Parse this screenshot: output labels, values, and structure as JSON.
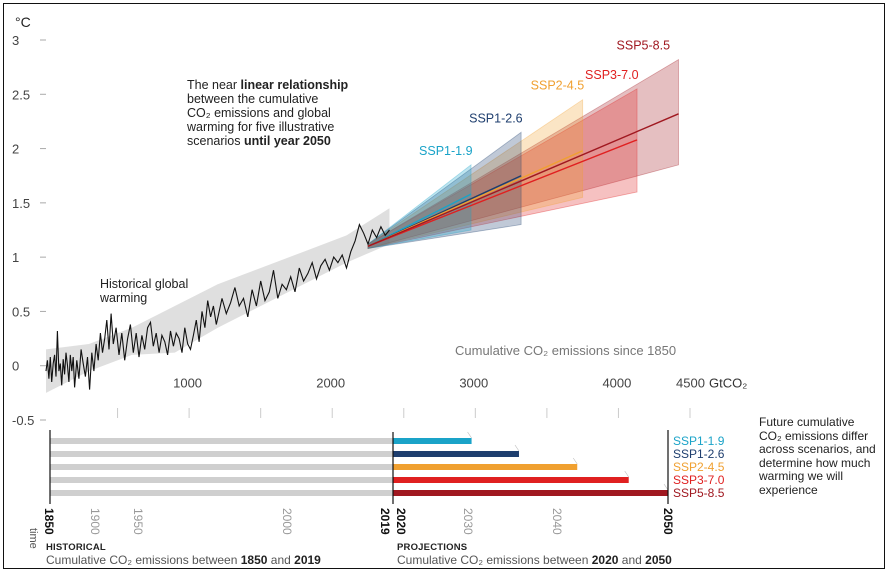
{
  "chart_data": [
    {
      "type": "line",
      "unit_label": "°C",
      "x_unit": "GtCO₂",
      "x_axis_caption": "Cumulative CO₂ emissions since 1850",
      "xlim": [
        0,
        4500
      ],
      "ylim": [
        -0.5,
        3
      ],
      "x_ticks": [
        1000,
        2000,
        3000,
        4000,
        4500
      ],
      "y_ticks": [
        -0.5,
        0,
        0.5,
        1,
        1.5,
        2,
        2.5,
        3
      ],
      "grid": false,
      "annotation_main": {
        "line1_pre": "The near ",
        "line1_bold": "linear relationship",
        "line2": "between the cumulative",
        "line3": "CO₂ emissions and global",
        "line4": "warming for five illustrative",
        "line5_pre": "scenarios ",
        "line5_bold": "until year 2050"
      },
      "annotation_historical": [
        "Historical global",
        "warming"
      ],
      "historical_series": {
        "x": [
          0,
          10,
          20,
          30,
          40,
          50,
          60,
          70,
          80,
          90,
          100,
          110,
          120,
          130,
          140,
          150,
          160,
          170,
          180,
          190,
          200,
          215,
          230,
          245,
          260,
          275,
          290,
          305,
          320,
          335,
          350,
          365,
          380,
          395,
          410,
          425,
          440,
          455,
          470,
          490,
          510,
          530,
          550,
          570,
          590,
          610,
          630,
          650,
          670,
          690,
          710,
          730,
          750,
          770,
          790,
          810,
          830,
          850,
          870,
          890,
          910,
          930,
          950,
          970,
          990,
          1010,
          1030,
          1050,
          1070,
          1090,
          1110,
          1130,
          1150,
          1170,
          1190,
          1210,
          1230,
          1260,
          1290,
          1320,
          1350,
          1380,
          1410,
          1440,
          1470,
          1500,
          1530,
          1560,
          1590,
          1620,
          1650,
          1680,
          1710,
          1740,
          1770,
          1800,
          1830,
          1860,
          1890,
          1920,
          1950,
          1980,
          2010,
          2040,
          2070,
          2100,
          2130,
          2160,
          2190,
          2220,
          2250,
          2280,
          2310,
          2340,
          2370,
          2400
        ],
        "y": [
          -0.05,
          0.05,
          -0.12,
          0.08,
          -0.15,
          0.02,
          0.1,
          -0.1,
          0.32,
          -0.05,
          0.02,
          -0.18,
          0.06,
          -0.08,
          0.12,
          0.0,
          -0.15,
          0.1,
          -0.05,
          0.08,
          -0.2,
          0.05,
          -0.12,
          0.15,
          0.02,
          -0.1,
          0.08,
          -0.22,
          0.12,
          -0.05,
          0.2,
          0.05,
          0.3,
          0.12,
          0.25,
          0.42,
          0.15,
          0.48,
          0.2,
          0.35,
          0.1,
          0.3,
          0.05,
          0.25,
          0.38,
          0.12,
          0.3,
          0.08,
          0.28,
          0.15,
          0.35,
          0.4,
          0.18,
          0.3,
          0.12,
          0.28,
          0.22,
          0.1,
          0.32,
          0.18,
          0.3,
          0.25,
          0.12,
          0.35,
          0.2,
          0.15,
          0.28,
          0.42,
          0.22,
          0.5,
          0.35,
          0.6,
          0.45,
          0.55,
          0.38,
          0.5,
          0.62,
          0.48,
          0.58,
          0.72,
          0.55,
          0.62,
          0.45,
          0.7,
          0.55,
          0.78,
          0.6,
          0.68,
          0.88,
          0.62,
          0.75,
          0.7,
          0.82,
          0.68,
          0.9,
          0.78,
          0.85,
          0.95,
          0.8,
          0.92,
          0.98,
          0.88,
          1.0,
          0.95,
          1.02,
          0.9,
          1.05,
          1.15,
          1.3,
          1.22,
          1.12,
          1.25,
          1.18,
          1.28,
          1.2,
          1.25
        ]
      },
      "historical_envelope": {
        "x": [
          0,
          300,
          600,
          900,
          1200,
          1500,
          1800,
          2100,
          2400
        ],
        "lower": [
          -0.25,
          -0.05,
          0.1,
          0.12,
          0.35,
          0.55,
          0.75,
          0.95,
          1.12
        ],
        "upper": [
          0.15,
          0.2,
          0.35,
          0.55,
          0.75,
          0.9,
          1.05,
          1.2,
          1.45
        ]
      },
      "series": [
        {
          "name": "SSP1-1.9",
          "color": "#1aa3c8",
          "x0": 2250,
          "x1": 2970,
          "y0": 1.1,
          "y1": 1.58,
          "lower1": 1.25,
          "upper1": 1.85
        },
        {
          "name": "SSP1-2.6",
          "color": "#1e3e6e",
          "x0": 2250,
          "x1": 3320,
          "y0": 1.1,
          "y1": 1.75,
          "lower1": 1.3,
          "upper1": 2.15
        },
        {
          "name": "SSP2-4.5",
          "color": "#f0a030",
          "x0": 2250,
          "x1": 3750,
          "y0": 1.1,
          "y1": 1.98,
          "lower1": 1.55,
          "upper1": 2.45
        },
        {
          "name": "SSP3-7.0",
          "color": "#e02020",
          "x0": 2250,
          "x1": 4130,
          "y0": 1.1,
          "y1": 2.08,
          "lower1": 1.6,
          "upper1": 2.55
        },
        {
          "name": "SSP5-8.5",
          "color": "#a01820",
          "x0": 2250,
          "x1": 4420,
          "y0": 1.1,
          "y1": 2.32,
          "lower1": 1.85,
          "upper1": 2.82
        }
      ]
    },
    {
      "type": "bar",
      "orientation": "horizontal",
      "time_label": "time",
      "years_axis": [
        {
          "year": "1850",
          "bold": true
        },
        {
          "year": "1900",
          "bold": false
        },
        {
          "year": "1950",
          "bold": false
        },
        {
          "year": "2000",
          "bold": false
        },
        {
          "year": "2019",
          "bold": true
        },
        {
          "year": "2020",
          "bold": true
        },
        {
          "year": "2030",
          "bold": false
        },
        {
          "year": "2040",
          "bold": false
        },
        {
          "year": "2050",
          "bold": true
        }
      ],
      "historical_value_gtco2": 2390,
      "series": [
        {
          "name": "SSP1-1.9",
          "color": "#1aa3c8",
          "cumulative_2050_gtco2": 2970
        },
        {
          "name": "SSP1-2.6",
          "color": "#1e3e6e",
          "cumulative_2050_gtco2": 3320
        },
        {
          "name": "SSP2-4.5",
          "color": "#f0a030",
          "cumulative_2050_gtco2": 3750
        },
        {
          "name": "SSP3-7.0",
          "color": "#e02020",
          "cumulative_2050_gtco2": 4130
        },
        {
          "name": "SSP5-8.5",
          "color": "#a01820",
          "cumulative_2050_gtco2": 4420
        }
      ],
      "side_note": [
        "Future cumulative",
        "CO₂ emissions differ",
        "across scenarios, and",
        "determine how much",
        "warming we will",
        "experience"
      ],
      "historical_caption": {
        "title": "HISTORICAL",
        "text_pre": "Cumulative CO₂ emissions between ",
        "bold_a": "1850",
        "text_mid": " and ",
        "bold_b": "2019"
      },
      "projections_caption": {
        "title": "PROJECTIONS",
        "text_pre": "Cumulative CO₂ emissions between ",
        "bold_a": "2020",
        "text_mid": " and ",
        "bold_b": "2050"
      }
    }
  ]
}
